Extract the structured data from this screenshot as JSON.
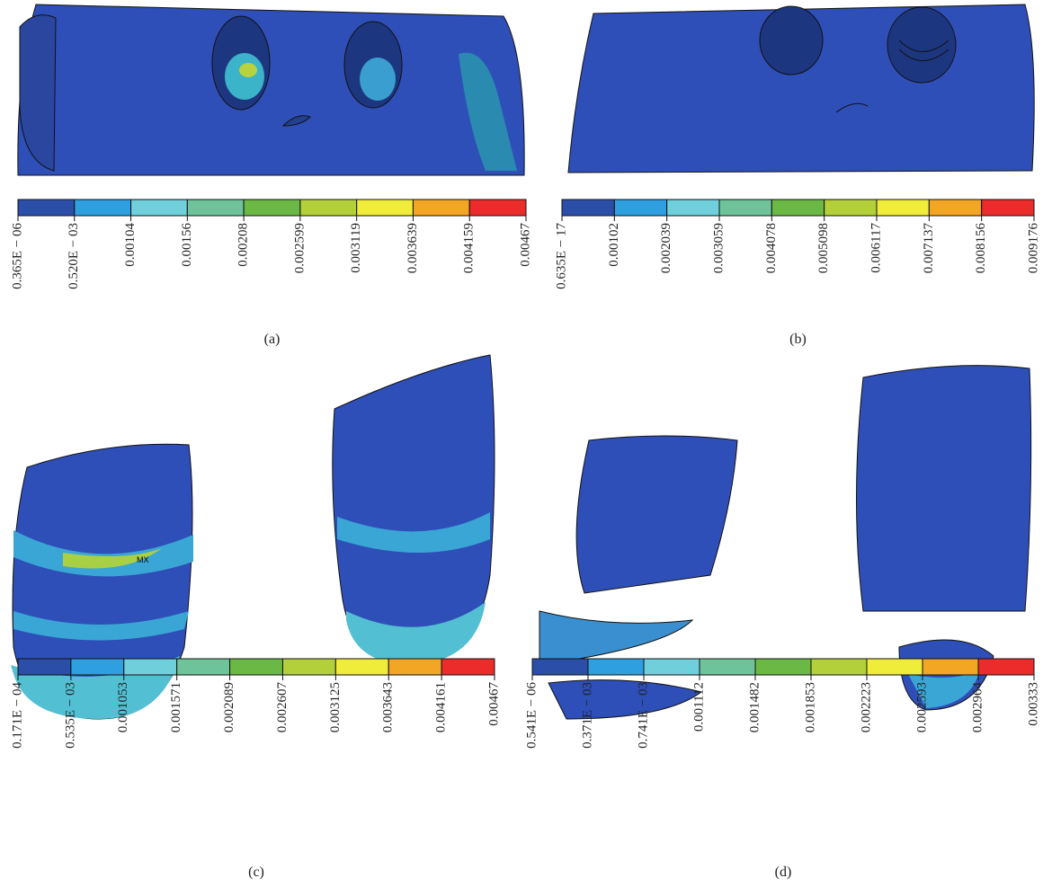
{
  "palette": [
    "#2b4ea8",
    "#2e9fe0",
    "#6fd0dc",
    "#6fc39a",
    "#6cb844",
    "#b3cf3a",
    "#f0ec3a",
    "#f3a524",
    "#ec2b2b"
  ],
  "panels": [
    {
      "caption": "(a)",
      "scale_labels": [
        "0.365E − 06",
        "0.520E − 03",
        "0.00104",
        "0.00156",
        "0.00208",
        "0.002599",
        "0.003119",
        "0.003639",
        "0.004159",
        "0.00467"
      ]
    },
    {
      "caption": "(b)",
      "scale_labels": [
        "0.635E − 17",
        "0.00102",
        "0.002039",
        "0.003059",
        "0.004078",
        "0.005098",
        "0.006117",
        "0.007137",
        "0.008156",
        "0.009176"
      ]
    },
    {
      "caption": "(c)",
      "marker": "MX",
      "scale_labels": [
        "0.171E − 04",
        "0.535E − 03",
        "0.001053",
        "0.001571",
        "0.002089",
        "0.002607",
        "0.003125",
        "0.003643",
        "0.004161",
        "0.00467"
      ]
    },
    {
      "caption": "(d)",
      "scale_labels": [
        "0.541E − 06",
        "0.371E − 03",
        "0.741E − 03",
        "0.001112",
        "0.001482",
        "0.001853",
        "0.002223",
        "0.002593",
        "0.002964",
        "0.00333"
      ]
    }
  ]
}
